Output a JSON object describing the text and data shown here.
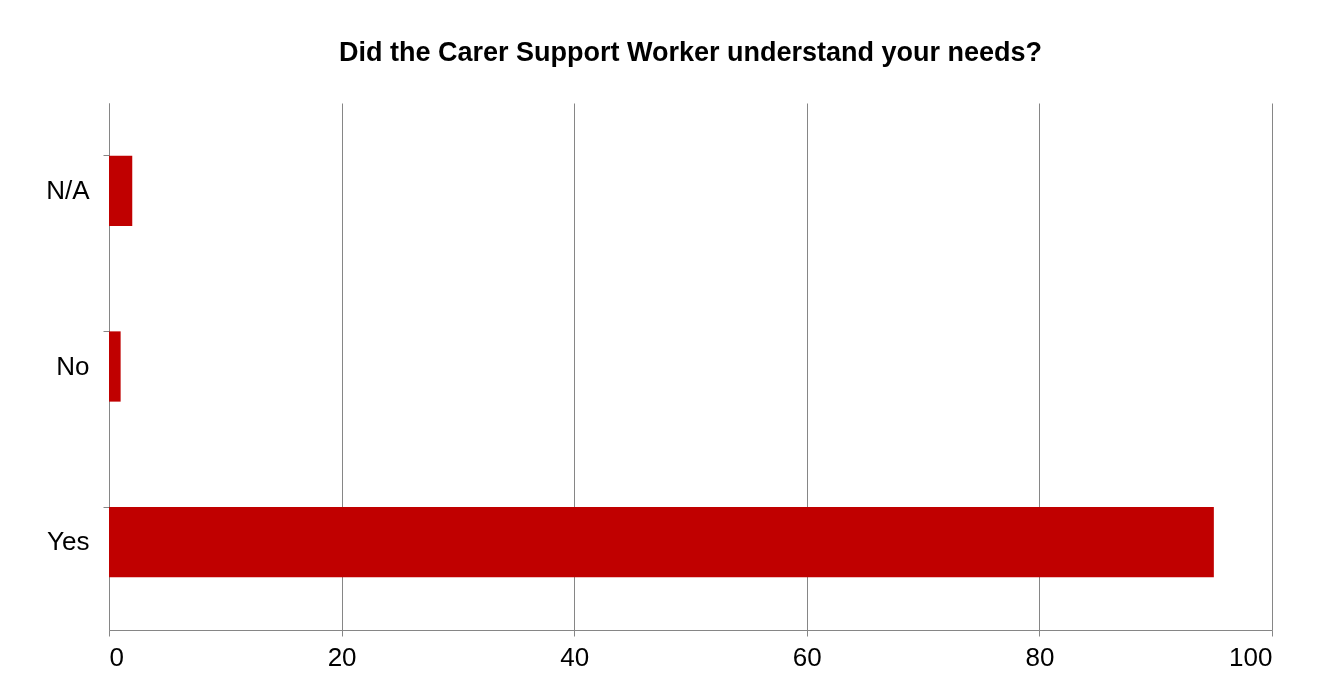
{
  "chart_data": {
    "type": "bar",
    "orientation": "horizontal",
    "title": "Did the Carer Support Worker understand your needs?",
    "categories": [
      "N/A",
      "No",
      "Yes"
    ],
    "values": [
      2,
      1,
      95
    ],
    "color": "#c00000",
    "xlim": [
      0,
      100
    ],
    "xticks": [
      0,
      20,
      40,
      60,
      80,
      100
    ],
    "grid": "x"
  }
}
